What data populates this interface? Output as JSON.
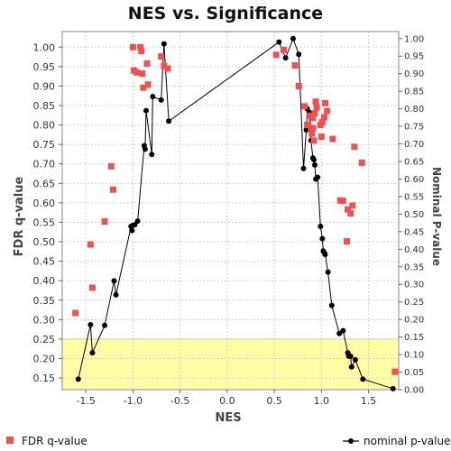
{
  "chart_data": {
    "type": "scatter",
    "title": "NES vs. Significance",
    "xlabel": "NES",
    "ylabel_left": "FDR q-value",
    "ylabel_right": "Nominal P-value",
    "xlim": [
      -1.75,
      1.82
    ],
    "ylim_left": [
      0.12,
      1.04
    ],
    "ylim_right": [
      0.0,
      1.02
    ],
    "x_ticks": [
      "-1.5",
      "-1.0",
      "-0.5",
      "0.0",
      "0.5",
      "1.0",
      "1.5"
    ],
    "y_left_ticks": [
      "0.15",
      "0.20",
      "0.25",
      "0.30",
      "0.35",
      "0.40",
      "0.45",
      "0.50",
      "0.55",
      "0.60",
      "0.65",
      "0.70",
      "0.75",
      "0.80",
      "0.85",
      "0.90",
      "0.95",
      "1.00"
    ],
    "y_right_ticks": [
      "0.00",
      "0.05",
      "0.10",
      "0.15",
      "0.20",
      "0.25",
      "0.30",
      "0.35",
      "0.40",
      "0.45",
      "0.50",
      "0.55",
      "0.60",
      "0.65",
      "0.70",
      "0.75",
      "0.80",
      "0.85",
      "0.90",
      "0.95",
      "1.00"
    ],
    "grid": true,
    "highlight_band": {
      "axis": "left",
      "from": 0.12,
      "to": 0.25,
      "color": "#ffffa8"
    },
    "legend_position": "bottom",
    "series": [
      {
        "name": "FDR q-value",
        "axis": "left",
        "style": "markers",
        "color": "#f05050",
        "points": [
          [
            -1.61,
            0.317
          ],
          [
            -1.45,
            0.493
          ],
          [
            -1.43,
            0.382
          ],
          [
            -1.3,
            0.552
          ],
          [
            -1.23,
            0.694
          ],
          [
            -1.21,
            0.634
          ],
          [
            -1.0,
            1.0
          ],
          [
            -0.99,
            0.94
          ],
          [
            -0.96,
            0.935
          ],
          [
            -0.92,
            1.0
          ],
          [
            -0.91,
            0.99
          ],
          [
            -0.9,
            0.932
          ],
          [
            -0.89,
            0.896
          ],
          [
            -0.85,
            0.958
          ],
          [
            -0.84,
            0.904
          ],
          [
            -0.7,
            0.976
          ],
          [
            -0.67,
            0.952
          ],
          [
            -0.63,
            0.945
          ],
          [
            0.52,
            0.98
          ],
          [
            0.6,
            0.993
          ],
          [
            0.72,
            0.953
          ],
          [
            0.76,
            0.9
          ],
          [
            0.82,
            0.848
          ],
          [
            0.85,
            0.8
          ],
          [
            0.86,
            0.8
          ],
          [
            0.88,
            0.824
          ],
          [
            0.89,
            0.79
          ],
          [
            0.9,
            0.778
          ],
          [
            0.91,
            0.792
          ],
          [
            0.91,
            0.818
          ],
          [
            0.92,
            0.76
          ],
          [
            0.93,
            0.83
          ],
          [
            0.94,
            0.86
          ],
          [
            0.95,
            0.845
          ],
          [
            0.99,
            0.8
          ],
          [
            1.0,
            0.77
          ],
          [
            1.01,
            0.808
          ],
          [
            1.03,
            0.82
          ],
          [
            1.04,
            0.856
          ],
          [
            1.06,
            0.836
          ],
          [
            1.12,
            0.764
          ],
          [
            1.2,
            0.606
          ],
          [
            1.23,
            0.605
          ],
          [
            1.27,
            0.501
          ],
          [
            1.28,
            0.583
          ],
          [
            1.31,
            0.573
          ],
          [
            1.33,
            0.593
          ],
          [
            1.35,
            0.744
          ],
          [
            1.43,
            0.703
          ],
          [
            1.78,
            0.166
          ]
        ]
      },
      {
        "name": "nominal p-value",
        "axis": "right",
        "style": "line-markers",
        "color": "#000000",
        "points": [
          [
            -1.58,
            0.03
          ],
          [
            -1.45,
            0.185
          ],
          [
            -1.43,
            0.105
          ],
          [
            -1.3,
            0.183
          ],
          [
            -1.2,
            0.31
          ],
          [
            -1.18,
            0.27
          ],
          [
            -1.02,
            0.465
          ],
          [
            -1.01,
            0.453
          ],
          [
            -1.0,
            0.468
          ],
          [
            -0.98,
            0.47
          ],
          [
            -0.95,
            0.48
          ],
          [
            -0.88,
            0.695
          ],
          [
            -0.87,
            0.685
          ],
          [
            -0.86,
            0.795
          ],
          [
            -0.8,
            0.67
          ],
          [
            -0.79,
            0.835
          ],
          [
            -0.7,
            0.825
          ],
          [
            -0.67,
            0.985
          ],
          [
            -0.62,
            0.765
          ],
          [
            0.55,
            0.99
          ],
          [
            0.62,
            0.945
          ],
          [
            0.7,
            1.0
          ],
          [
            0.76,
            0.955
          ],
          [
            0.81,
            0.63
          ],
          [
            0.84,
            0.74
          ],
          [
            0.85,
            0.8
          ],
          [
            0.87,
            0.79
          ],
          [
            0.89,
            0.71
          ],
          [
            0.91,
            0.66
          ],
          [
            0.92,
            0.655
          ],
          [
            0.93,
            0.64
          ],
          [
            0.94,
            0.6
          ],
          [
            0.96,
            0.605
          ],
          [
            0.99,
            0.465
          ],
          [
            1.01,
            0.43
          ],
          [
            1.02,
            0.395
          ],
          [
            1.03,
            0.39
          ],
          [
            1.04,
            0.385
          ],
          [
            1.07,
            0.335
          ],
          [
            1.11,
            0.24
          ],
          [
            1.19,
            0.16
          ],
          [
            1.23,
            0.168
          ],
          [
            1.28,
            0.105
          ],
          [
            1.29,
            0.095
          ],
          [
            1.31,
            0.095
          ],
          [
            1.32,
            0.065
          ],
          [
            1.36,
            0.085
          ],
          [
            1.44,
            0.03
          ],
          [
            1.76,
            0.003
          ]
        ]
      }
    ]
  }
}
